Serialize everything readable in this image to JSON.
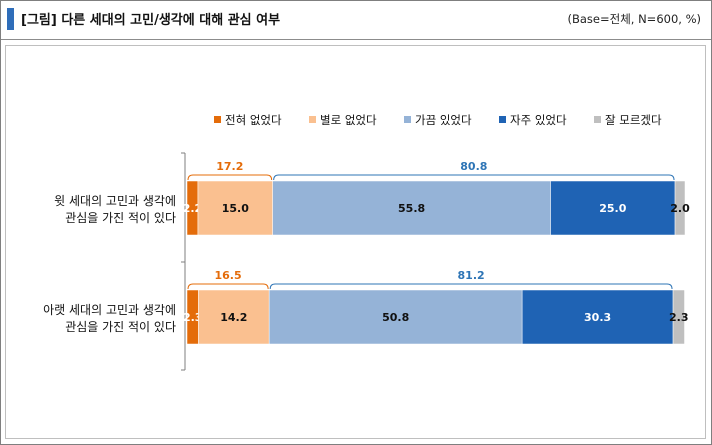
{
  "header": {
    "title": "[그림] 다른 세대의 고민/생각에 대해 관심 여부",
    "base": "(Base=전체, N=600, %)"
  },
  "colors": {
    "accent": "#2f6eba",
    "series": [
      "#e46c0a",
      "#fac090",
      "#95b3d7",
      "#1f63b4",
      "#bfbfbf"
    ],
    "sum_negative": "#e46c0a",
    "sum_positive": "#2e75b6"
  },
  "chart_data": {
    "type": "bar",
    "orientation": "horizontal",
    "stacked": true,
    "title": "[그림] 다른 세대의 고민/생각에 대해 관심 여부",
    "categories": [
      [
        "윗 세대의 고민과 생각에",
        "관심을 가진 적이 있다"
      ],
      [
        "아랫 세대의 고민과 생각에",
        "관심을 가진 적이 있다"
      ]
    ],
    "series": [
      {
        "name": "전혀 없었다",
        "values": [
          2.2,
          2.3
        ]
      },
      {
        "name": "별로 없었다",
        "values": [
          15.0,
          14.2
        ]
      },
      {
        "name": "가끔 있었다",
        "values": [
          55.8,
          50.8
        ]
      },
      {
        "name": "자주 있었다",
        "values": [
          25.0,
          30.3
        ]
      },
      {
        "name": "잘 모르겠다",
        "values": [
          2.0,
          2.3
        ]
      }
    ],
    "value_labels": [
      [
        "2.2",
        "15.0",
        "55.8",
        "25.0",
        "2.0"
      ],
      [
        "2.3",
        "14.2",
        "50.8",
        "30.3",
        "2.3"
      ]
    ],
    "subtotals": [
      {
        "negative": "17.2",
        "positive": "80.8"
      },
      {
        "negative": "16.5",
        "positive": "81.2"
      }
    ],
    "xlim": [
      0,
      100
    ],
    "legend_position": "top",
    "unit": "%"
  }
}
